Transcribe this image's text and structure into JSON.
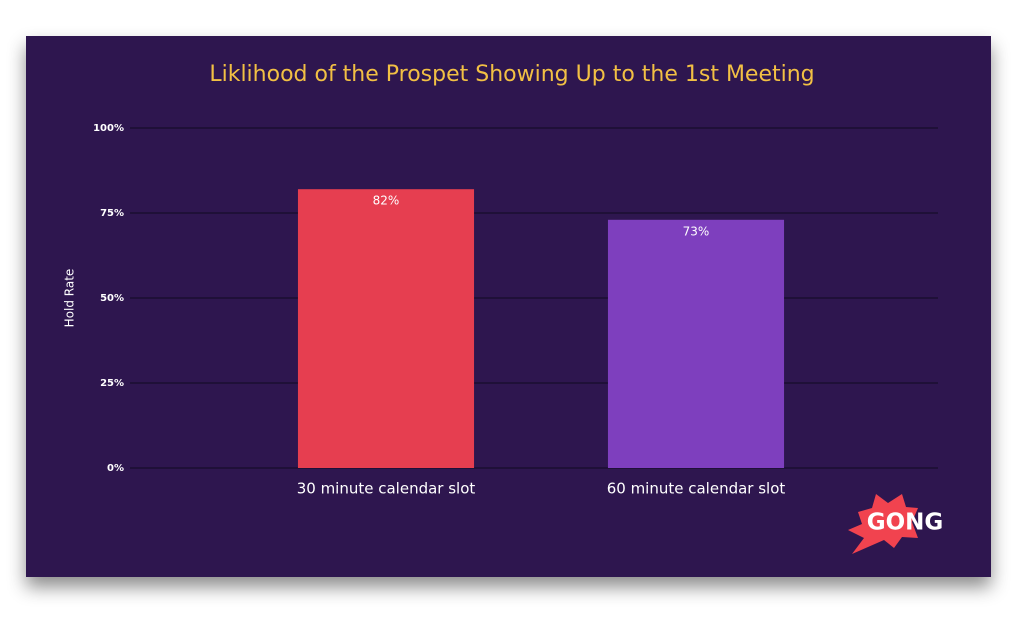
{
  "chart_data": {
    "type": "bar",
    "title": "Liklihood of the Prospet Showing Up to the 1st Meeting",
    "y_label": "Hold Rate",
    "categories": [
      "30 minute calendar slot",
      "60 minute calendar slot"
    ],
    "values": [
      82,
      73
    ],
    "value_labels": [
      "82%",
      "73%"
    ],
    "colors": [
      "#e63e50",
      "#7e3fbe"
    ],
    "ylim": [
      0,
      100
    ],
    "yticks": [
      {
        "value": 0,
        "label": "0%"
      },
      {
        "value": 25,
        "label": "25%"
      },
      {
        "value": 50,
        "label": "50%"
      },
      {
        "value": 75,
        "label": "75%"
      },
      {
        "value": 100,
        "label": "100%"
      }
    ],
    "grid": true
  },
  "logo": "GONG"
}
